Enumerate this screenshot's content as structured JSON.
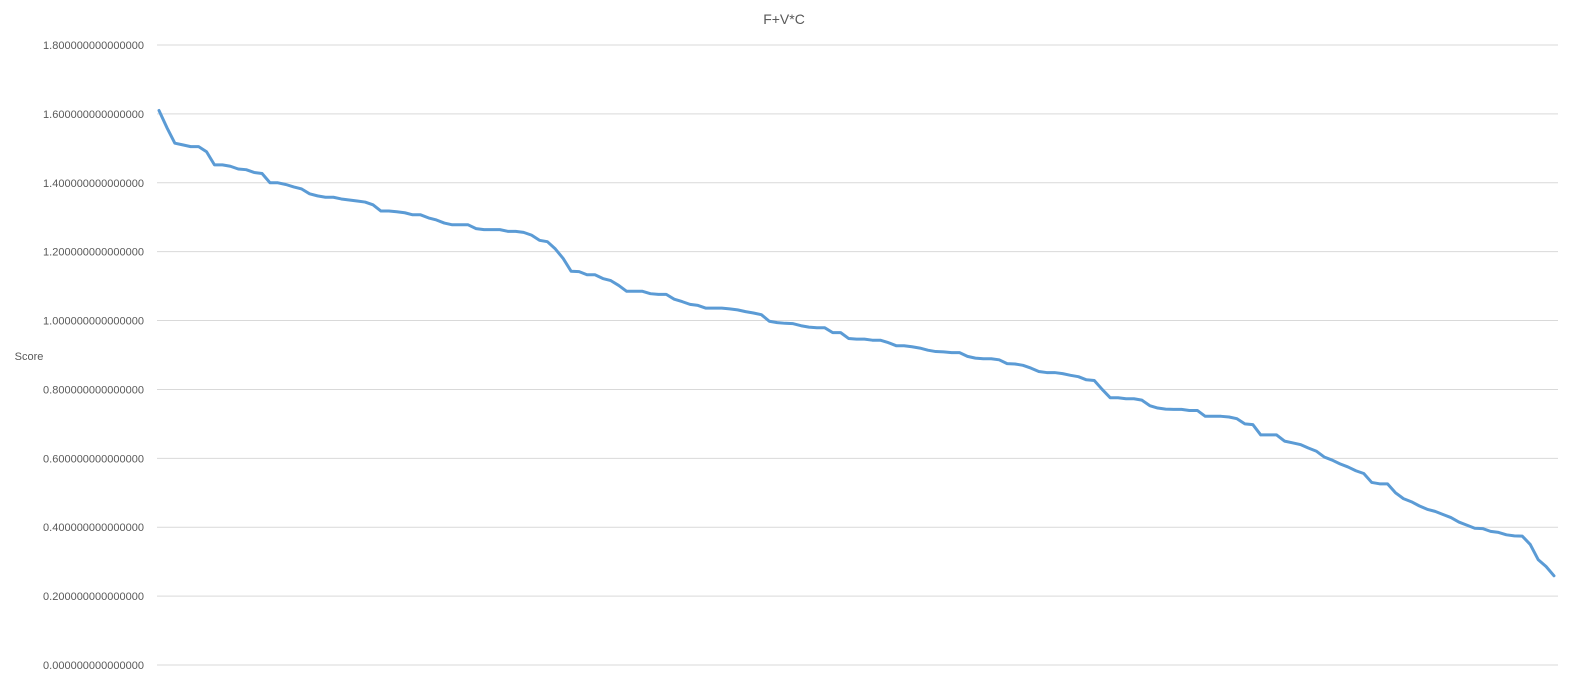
{
  "chart_data": {
    "type": "line",
    "title": "F+V*C",
    "xlabel": "",
    "ylabel": "Score",
    "ylim": [
      0,
      1.8
    ],
    "yticks": [
      {
        "value": 0.0,
        "label": "0.000000000000000"
      },
      {
        "value": 0.2,
        "label": "0.200000000000000"
      },
      {
        "value": 0.4,
        "label": "0.400000000000000"
      },
      {
        "value": 0.6,
        "label": "0.600000000000000"
      },
      {
        "value": 0.8,
        "label": "0.800000000000000"
      },
      {
        "value": 1.0,
        "label": "1.000000000000000"
      },
      {
        "value": 1.2,
        "label": "1.200000000000000"
      },
      {
        "value": 1.4,
        "label": "1.400000000000000"
      },
      {
        "value": 1.6,
        "label": "1.600000000000000"
      },
      {
        "value": 1.8,
        "label": "1.800000000000000"
      }
    ],
    "grid": true,
    "legend": "none",
    "series": [
      {
        "color": "#5b9bd5",
        "values": [
          1.61,
          1.56,
          1.515,
          1.51,
          1.505,
          1.505,
          1.49,
          1.452,
          1.452,
          1.448,
          1.44,
          1.438,
          1.43,
          1.427,
          1.4,
          1.4,
          1.395,
          1.388,
          1.382,
          1.368,
          1.362,
          1.358,
          1.358,
          1.353,
          1.35,
          1.347,
          1.344,
          1.336,
          1.318,
          1.318,
          1.316,
          1.313,
          1.307,
          1.307,
          1.298,
          1.292,
          1.283,
          1.278,
          1.278,
          1.278,
          1.267,
          1.264,
          1.264,
          1.264,
          1.259,
          1.259,
          1.256,
          1.248,
          1.233,
          1.229,
          1.208,
          1.18,
          1.143,
          1.142,
          1.133,
          1.133,
          1.122,
          1.116,
          1.102,
          1.085,
          1.085,
          1.085,
          1.078,
          1.076,
          1.076,
          1.062,
          1.055,
          1.047,
          1.044,
          1.036,
          1.036,
          1.036,
          1.034,
          1.031,
          1.026,
          1.022,
          1.017,
          0.998,
          0.994,
          0.992,
          0.991,
          0.985,
          0.981,
          0.979,
          0.979,
          0.965,
          0.965,
          0.948,
          0.946,
          0.946,
          0.943,
          0.943,
          0.936,
          0.927,
          0.927,
          0.924,
          0.92,
          0.914,
          0.91,
          0.909,
          0.907,
          0.907,
          0.896,
          0.891,
          0.889,
          0.889,
          0.886,
          0.875,
          0.874,
          0.87,
          0.862,
          0.852,
          0.849,
          0.849,
          0.846,
          0.841,
          0.837,
          0.828,
          0.826,
          0.8,
          0.776,
          0.776,
          0.773,
          0.773,
          0.769,
          0.753,
          0.746,
          0.743,
          0.742,
          0.742,
          0.739,
          0.739,
          0.722,
          0.722,
          0.722,
          0.72,
          0.715,
          0.7,
          0.698,
          0.668,
          0.668,
          0.668,
          0.65,
          0.645,
          0.64,
          0.63,
          0.621,
          0.604,
          0.595,
          0.584,
          0.575,
          0.564,
          0.556,
          0.53,
          0.526,
          0.526,
          0.5,
          0.483,
          0.474,
          0.462,
          0.452,
          0.446,
          0.437,
          0.428,
          0.415,
          0.406,
          0.397,
          0.396,
          0.388,
          0.385,
          0.378,
          0.375,
          0.374,
          0.35,
          0.306,
          0.286,
          0.259
        ]
      }
    ]
  }
}
